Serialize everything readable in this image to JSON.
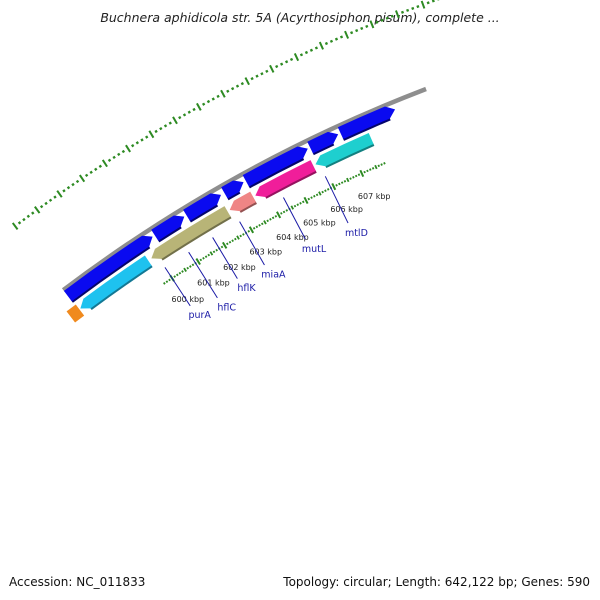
{
  "title": "Buchnera aphidicola str. 5A (Acyrthosiphon pisum), complete ...",
  "footer": {
    "accession": "Accession: NC_011833",
    "summary": "Topology: circular; Length: 642,122 bp; Genes: 590"
  },
  "colors": {
    "backbone": "#8e8e8e",
    "forward_strand": "#0a0af0",
    "tick": "#2d8a22",
    "gene_label": "#1a1aa6"
  },
  "scale_labels": [
    "600 kbp",
    "601 kbp",
    "602 kbp",
    "603 kbp",
    "604 kbp",
    "605 kbp",
    "606 kbp",
    "607 kbp"
  ],
  "gene_labels": [
    "purA",
    "hflC",
    "hflK",
    "miaA",
    "mutL",
    "mtlD"
  ],
  "reverse_genes": [
    {
      "name": "purA",
      "color": "#1ec2ef"
    },
    {
      "name": "hflC",
      "color": "#b8b477"
    },
    {
      "name": "miaA",
      "color": "#ef8585"
    },
    {
      "name": "mutL",
      "color": "#f01e9a"
    },
    {
      "name": "mtlD",
      "color": "#1ecfcf"
    }
  ]
}
